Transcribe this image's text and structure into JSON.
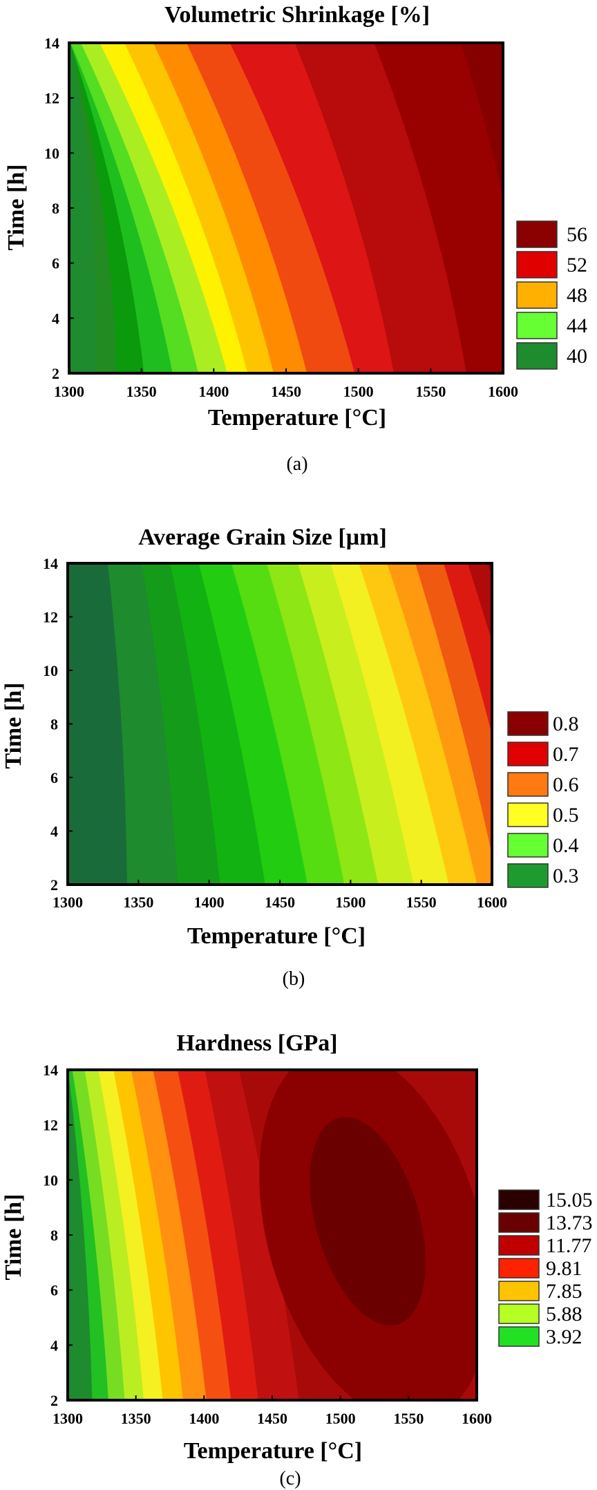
{
  "chart_data": [
    {
      "type": "contour",
      "panel_label": "(a)",
      "title": "Volumetric Shrinkage [%]",
      "xlabel": "Temperature [°C]",
      "ylabel": "Time [h]",
      "xlim": [
        1300,
        1600
      ],
      "ylim": [
        2,
        14
      ],
      "xticks": [
        "1300",
        "1350",
        "1400",
        "1450",
        "1500",
        "1550",
        "1600"
      ],
      "yticks": [
        "2",
        "4",
        "6",
        "8",
        "10",
        "12",
        "14"
      ],
      "legend": {
        "labels": [
          "56",
          "52",
          "48",
          "44",
          "40"
        ],
        "colors": [
          "#8B0000",
          "#E00000",
          "#FFB000",
          "#66FF33",
          "#1E8B2E"
        ]
      },
      "bands": [
        {
          "x_at_t2": 1300,
          "x_at_t14": 1300,
          "color": "#1E8B2E"
        },
        {
          "x_at_t2": 1318,
          "x_at_t14": 1300,
          "color": "#228B22"
        },
        {
          "x_at_t2": 1333,
          "x_at_t14": 1300,
          "color": "#0B9A0B"
        },
        {
          "x_at_t2": 1352,
          "x_at_t14": 1300,
          "color": "#1FBE1F"
        },
        {
          "x_at_t2": 1372,
          "x_at_t14": 1300,
          "color": "#55DD22"
        },
        {
          "x_at_t2": 1390,
          "x_at_t14": 1307,
          "color": "#AAEE22"
        },
        {
          "x_at_t2": 1410,
          "x_at_t14": 1320,
          "color": "#FFF200"
        },
        {
          "x_at_t2": 1424,
          "x_at_t14": 1337,
          "color": "#FFC400"
        },
        {
          "x_at_t2": 1442,
          "x_at_t14": 1357,
          "color": "#FF8C00"
        },
        {
          "x_at_t2": 1465,
          "x_at_t14": 1380,
          "color": "#F04A10"
        },
        {
          "x_at_t2": 1498,
          "x_at_t14": 1410,
          "color": "#DD1515"
        },
        {
          "x_at_t2": 1525,
          "x_at_t14": 1455,
          "color": "#B80B0B"
        },
        {
          "x_at_t2": 1575,
          "x_at_t14": 1510,
          "color": "#990000"
        },
        {
          "x_at_t2": 1620,
          "x_at_t14": 1570,
          "color": "#860000"
        }
      ]
    },
    {
      "type": "contour",
      "panel_label": "(b)",
      "title": "Average Grain Size [µm]",
      "xlabel": "Temperature [°C]",
      "ylabel": "Time [h]",
      "xlim": [
        1300,
        1600
      ],
      "ylim": [
        2,
        14
      ],
      "xticks": [
        "1300",
        "1350",
        "1400",
        "1450",
        "1500",
        "1550",
        "1600"
      ],
      "yticks": [
        "2",
        "4",
        "6",
        "8",
        "10",
        "12",
        "14"
      ],
      "legend": {
        "labels": [
          "0.8",
          "0.7",
          "0.6",
          "0.5",
          "0.4",
          "0.3"
        ],
        "colors": [
          "#8B0000",
          "#E00000",
          "#FF7A10",
          "#FFFF22",
          "#66FF33",
          "#1E9B2E"
        ]
      },
      "bands": [
        {
          "x_at_t2": 1300,
          "x_at_t14": 1300,
          "color": "#1A6B3A"
        },
        {
          "x_at_t2": 1342,
          "x_at_t14": 1328,
          "color": "#1E8B2E"
        },
        {
          "x_at_t2": 1378,
          "x_at_t14": 1352,
          "color": "#159B1A"
        },
        {
          "x_at_t2": 1408,
          "x_at_t14": 1372,
          "color": "#11B211"
        },
        {
          "x_at_t2": 1440,
          "x_at_t14": 1392,
          "color": "#22CC11"
        },
        {
          "x_at_t2": 1470,
          "x_at_t14": 1415,
          "color": "#55DD11"
        },
        {
          "x_at_t2": 1496,
          "x_at_t14": 1440,
          "color": "#8EE614"
        },
        {
          "x_at_t2": 1520,
          "x_at_t14": 1462,
          "color": "#C8EE1E"
        },
        {
          "x_at_t2": 1545,
          "x_at_t14": 1485,
          "color": "#F2F020"
        },
        {
          "x_at_t2": 1570,
          "x_at_t14": 1505,
          "color": "#FFC810"
        },
        {
          "x_at_t2": 1590,
          "x_at_t14": 1525,
          "color": "#FF9A10"
        },
        {
          "x_at_t2": 1605,
          "x_at_t14": 1545,
          "color": "#F05A10"
        },
        {
          "x_at_t2": 1625,
          "x_at_t14": 1565,
          "color": "#DD1A12"
        },
        {
          "x_at_t2": 1645,
          "x_at_t14": 1582,
          "color": "#B00A0A"
        },
        {
          "x_at_t2": 1665,
          "x_at_t14": 1596,
          "color": "#8B0000"
        }
      ]
    },
    {
      "type": "contour",
      "panel_label": "(c)",
      "title": "Hardness [GPa]",
      "xlabel": "Temperature [°C]",
      "ylabel": "Time [h]",
      "xlim": [
        1300,
        1600
      ],
      "ylim": [
        2,
        14
      ],
      "xticks": [
        "1300",
        "1350",
        "1400",
        "1450",
        "1500",
        "1550",
        "1600"
      ],
      "yticks": [
        "2",
        "4",
        "6",
        "8",
        "10",
        "12",
        "14"
      ],
      "legend": {
        "labels": [
          "15.05",
          "13.73",
          "11.77",
          "9.81",
          "7.85",
          "5.88",
          "3.92"
        ],
        "colors": [
          "#2A0000",
          "#6B0000",
          "#C00000",
          "#FF2200",
          "#FFC400",
          "#B6FF22",
          "#22E022"
        ]
      },
      "bands": [
        {
          "x_at_t2": 1300,
          "x_at_t14": 1300,
          "color": "#1E8B2E"
        },
        {
          "x_at_t2": 1318,
          "x_at_t14": 1300,
          "color": "#22C022"
        },
        {
          "x_at_t2": 1330,
          "x_at_t14": 1303,
          "color": "#77DD22"
        },
        {
          "x_at_t2": 1342,
          "x_at_t14": 1312,
          "color": "#BBEE22"
        },
        {
          "x_at_t2": 1356,
          "x_at_t14": 1322,
          "color": "#F5F022"
        },
        {
          "x_at_t2": 1370,
          "x_at_t14": 1333,
          "color": "#FFC400"
        },
        {
          "x_at_t2": 1385,
          "x_at_t14": 1346,
          "color": "#FF9010"
        },
        {
          "x_at_t2": 1402,
          "x_at_t14": 1362,
          "color": "#F55012"
        },
        {
          "x_at_t2": 1420,
          "x_at_t14": 1380,
          "color": "#E01C12"
        },
        {
          "x_at_t2": 1440,
          "x_at_t14": 1400,
          "color": "#C01010"
        },
        {
          "x_at_t2": 1470,
          "x_at_t14": 1425,
          "color": "#A80A0A"
        }
      ],
      "ellipses": [
        {
          "cx": 1525,
          "cy": 8.0,
          "rx": 78,
          "ry": 7.0,
          "rot": -16,
          "color": "#8B0000"
        },
        {
          "cx": 1520,
          "cy": 8.5,
          "rx": 38,
          "ry": 3.9,
          "rot": -16,
          "color": "#6B0000"
        }
      ]
    }
  ]
}
